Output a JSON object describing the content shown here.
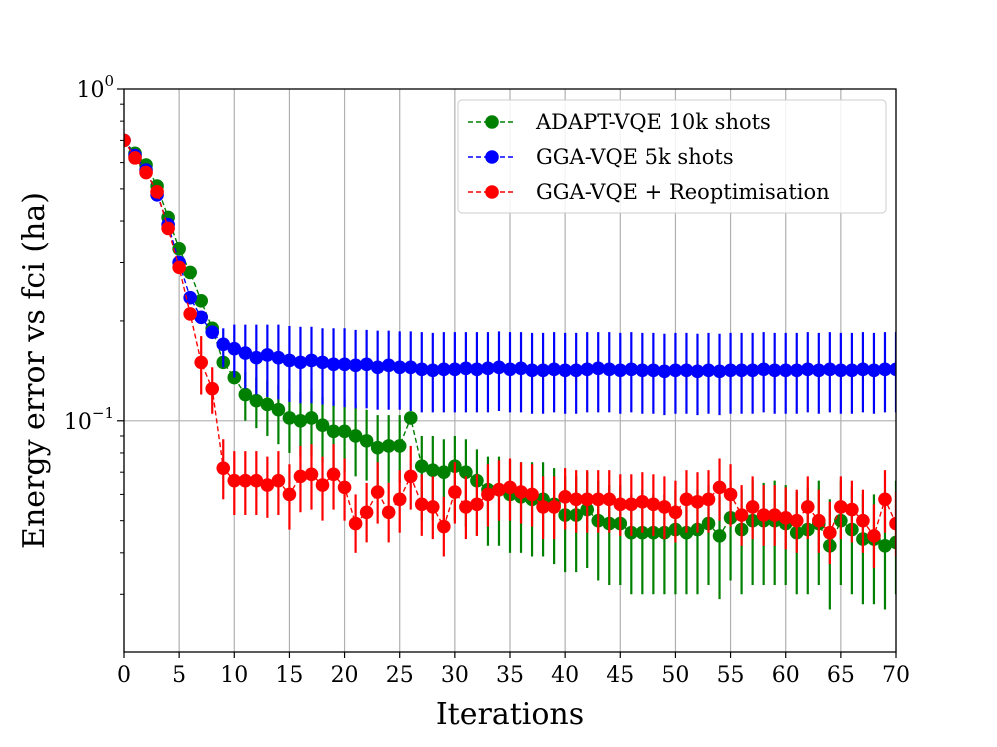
{
  "chart_data": {
    "type": "line",
    "xlabel": "Iterations",
    "ylabel": "Energy error vs fci (ha)",
    "xlim": [
      0,
      70
    ],
    "ylim": [
      0.02,
      1.0
    ],
    "yscale": "log",
    "grid": "vertical only (plus y=10^-1)",
    "legend_position": "upper right",
    "x_ticks": [
      0,
      5,
      10,
      15,
      20,
      25,
      30,
      35,
      40,
      45,
      50,
      55,
      60,
      65,
      70
    ],
    "y_ticks": [
      {
        "value": 1.0,
        "base": "10",
        "exp": "0"
      },
      {
        "value": 0.1,
        "base": "10",
        "exp": "−1"
      }
    ],
    "series": [
      {
        "name": "ADAPT-VQE 10k shots",
        "color": "#008000",
        "x": [
          0,
          1,
          2,
          3,
          4,
          5,
          6,
          7,
          8,
          9,
          10,
          11,
          12,
          13,
          14,
          15,
          16,
          17,
          18,
          19,
          20,
          21,
          22,
          23,
          24,
          25,
          26,
          27,
          28,
          29,
          30,
          31,
          32,
          33,
          34,
          35,
          36,
          37,
          38,
          39,
          40,
          41,
          42,
          43,
          44,
          45,
          46,
          47,
          48,
          49,
          50,
          51,
          52,
          53,
          54,
          55,
          56,
          57,
          58,
          59,
          60,
          61,
          62,
          63,
          64,
          65,
          66,
          67,
          68,
          69,
          70
        ],
        "y": [
          0.7,
          0.64,
          0.59,
          0.51,
          0.41,
          0.33,
          0.28,
          0.23,
          0.19,
          0.15,
          0.135,
          0.12,
          0.115,
          0.112,
          0.108,
          0.102,
          0.1,
          0.102,
          0.097,
          0.093,
          0.093,
          0.09,
          0.087,
          0.083,
          0.084,
          0.084,
          0.102,
          0.073,
          0.071,
          0.07,
          0.073,
          0.07,
          0.066,
          0.062,
          0.062,
          0.06,
          0.059,
          0.058,
          0.058,
          0.056,
          0.052,
          0.052,
          0.054,
          0.05,
          0.049,
          0.049,
          0.046,
          0.046,
          0.046,
          0.046,
          0.047,
          0.046,
          0.047,
          0.049,
          0.045,
          0.051,
          0.047,
          0.05,
          0.05,
          0.05,
          0.049,
          0.046,
          0.047,
          0.049,
          0.042,
          0.05,
          0.047,
          0.044,
          0.044,
          0.042,
          0.043
        ],
        "err_low": [
          0.7,
          0.64,
          0.59,
          0.51,
          0.41,
          0.33,
          0.28,
          0.23,
          0.19,
          0.15,
          0.135,
          0.1,
          0.095,
          0.09,
          0.085,
          0.08,
          0.078,
          0.078,
          0.075,
          0.072,
          0.07,
          0.068,
          0.066,
          0.064,
          0.065,
          0.065,
          0.102,
          0.05,
          0.05,
          0.048,
          0.05,
          0.048,
          0.045,
          0.042,
          0.042,
          0.04,
          0.04,
          0.039,
          0.039,
          0.037,
          0.035,
          0.035,
          0.036,
          0.033,
          0.032,
          0.032,
          0.03,
          0.03,
          0.03,
          0.03,
          0.03,
          0.03,
          0.03,
          0.032,
          0.029,
          0.033,
          0.03,
          0.032,
          0.032,
          0.032,
          0.032,
          0.03,
          0.03,
          0.032,
          0.027,
          0.032,
          0.03,
          0.028,
          0.028,
          0.027,
          0.03
        ],
        "err_high": [
          0.7,
          0.64,
          0.59,
          0.51,
          0.41,
          0.33,
          0.28,
          0.23,
          0.19,
          0.15,
          0.135,
          0.14,
          0.135,
          0.132,
          0.128,
          0.124,
          0.122,
          0.124,
          0.118,
          0.115,
          0.116,
          0.112,
          0.108,
          0.104,
          0.104,
          0.104,
          0.102,
          0.09,
          0.09,
          0.088,
          0.09,
          0.088,
          0.082,
          0.078,
          0.078,
          0.076,
          0.075,
          0.075,
          0.075,
          0.072,
          0.068,
          0.068,
          0.07,
          0.066,
          0.064,
          0.064,
          0.06,
          0.062,
          0.06,
          0.06,
          0.062,
          0.06,
          0.062,
          0.064,
          0.059,
          0.066,
          0.062,
          0.066,
          0.065,
          0.066,
          0.064,
          0.061,
          0.063,
          0.066,
          0.058,
          0.066,
          0.063,
          0.06,
          0.06,
          0.058,
          0.066
        ]
      },
      {
        "name": "GGA-VQE 5k shots",
        "color": "#0000ff",
        "x": [
          0,
          1,
          2,
          3,
          4,
          5,
          6,
          7,
          8,
          9,
          10,
          11,
          12,
          13,
          14,
          15,
          16,
          17,
          18,
          19,
          20,
          21,
          22,
          23,
          24,
          25,
          26,
          27,
          28,
          29,
          30,
          31,
          32,
          33,
          34,
          35,
          36,
          37,
          38,
          39,
          40,
          41,
          42,
          43,
          44,
          45,
          46,
          47,
          48,
          49,
          50,
          51,
          52,
          53,
          54,
          55,
          56,
          57,
          58,
          59,
          60,
          61,
          62,
          63,
          64,
          65,
          66,
          67,
          68,
          69,
          70
        ],
        "y": [
          0.7,
          0.63,
          0.57,
          0.48,
          0.39,
          0.3,
          0.235,
          0.205,
          0.185,
          0.17,
          0.165,
          0.16,
          0.155,
          0.158,
          0.155,
          0.152,
          0.15,
          0.152,
          0.15,
          0.148,
          0.148,
          0.147,
          0.148,
          0.145,
          0.147,
          0.145,
          0.145,
          0.143,
          0.142,
          0.143,
          0.143,
          0.144,
          0.143,
          0.144,
          0.145,
          0.143,
          0.144,
          0.142,
          0.142,
          0.143,
          0.142,
          0.142,
          0.143,
          0.144,
          0.143,
          0.142,
          0.143,
          0.142,
          0.142,
          0.141,
          0.142,
          0.142,
          0.141,
          0.142,
          0.141,
          0.142,
          0.142,
          0.142,
          0.143,
          0.142,
          0.142,
          0.142,
          0.143,
          0.142,
          0.143,
          0.142,
          0.142,
          0.143,
          0.142,
          0.143,
          0.143
        ],
        "err_low": [
          0.7,
          0.63,
          0.57,
          0.48,
          0.39,
          0.3,
          0.235,
          0.205,
          0.185,
          0.145,
          0.135,
          0.125,
          0.12,
          0.118,
          0.116,
          0.114,
          0.113,
          0.113,
          0.112,
          0.111,
          0.11,
          0.109,
          0.109,
          0.108,
          0.108,
          0.108,
          0.107,
          0.106,
          0.106,
          0.106,
          0.106,
          0.106,
          0.106,
          0.106,
          0.107,
          0.106,
          0.106,
          0.105,
          0.105,
          0.106,
          0.105,
          0.105,
          0.106,
          0.106,
          0.106,
          0.105,
          0.106,
          0.105,
          0.105,
          0.104,
          0.105,
          0.105,
          0.104,
          0.105,
          0.104,
          0.105,
          0.105,
          0.105,
          0.106,
          0.105,
          0.105,
          0.105,
          0.106,
          0.105,
          0.106,
          0.105,
          0.105,
          0.106,
          0.105,
          0.106,
          0.106
        ],
        "err_high": [
          0.7,
          0.63,
          0.57,
          0.48,
          0.39,
          0.3,
          0.235,
          0.205,
          0.185,
          0.19,
          0.195,
          0.195,
          0.195,
          0.195,
          0.195,
          0.193,
          0.192,
          0.192,
          0.19,
          0.19,
          0.19,
          0.188,
          0.188,
          0.187,
          0.187,
          0.186,
          0.186,
          0.185,
          0.184,
          0.185,
          0.185,
          0.185,
          0.185,
          0.185,
          0.186,
          0.185,
          0.185,
          0.184,
          0.184,
          0.185,
          0.184,
          0.184,
          0.185,
          0.185,
          0.185,
          0.184,
          0.185,
          0.184,
          0.184,
          0.183,
          0.184,
          0.184,
          0.183,
          0.184,
          0.183,
          0.184,
          0.184,
          0.184,
          0.185,
          0.184,
          0.184,
          0.184,
          0.185,
          0.184,
          0.185,
          0.184,
          0.184,
          0.185,
          0.184,
          0.185,
          0.185
        ]
      },
      {
        "name": "GGA-VQE + Reoptimisation",
        "color": "#ff0000",
        "x": [
          0,
          1,
          2,
          3,
          4,
          5,
          6,
          7,
          8,
          9,
          10,
          11,
          12,
          13,
          14,
          15,
          16,
          17,
          18,
          19,
          20,
          21,
          22,
          23,
          24,
          25,
          26,
          27,
          28,
          29,
          30,
          31,
          32,
          33,
          34,
          35,
          36,
          37,
          38,
          39,
          40,
          41,
          42,
          43,
          44,
          45,
          46,
          47,
          48,
          49,
          50,
          51,
          52,
          53,
          54,
          55,
          56,
          57,
          58,
          59,
          60,
          61,
          62,
          63,
          64,
          65,
          66,
          67,
          68,
          69,
          70
        ],
        "y": [
          0.7,
          0.62,
          0.56,
          0.49,
          0.38,
          0.29,
          0.21,
          0.15,
          0.125,
          0.072,
          0.066,
          0.066,
          0.066,
          0.064,
          0.066,
          0.06,
          0.068,
          0.069,
          0.064,
          0.069,
          0.063,
          0.049,
          0.053,
          0.061,
          0.053,
          0.058,
          0.068,
          0.056,
          0.055,
          0.048,
          0.061,
          0.055,
          0.056,
          0.06,
          0.062,
          0.063,
          0.061,
          0.06,
          0.055,
          0.055,
          0.059,
          0.058,
          0.058,
          0.058,
          0.058,
          0.056,
          0.056,
          0.057,
          0.056,
          0.055,
          0.053,
          0.058,
          0.057,
          0.058,
          0.063,
          0.06,
          0.052,
          0.055,
          0.052,
          0.052,
          0.051,
          0.05,
          0.055,
          0.05,
          0.046,
          0.055,
          0.054,
          0.05,
          0.045,
          0.058,
          0.049
        ],
        "err_low": [
          0.7,
          0.62,
          0.56,
          0.49,
          0.38,
          0.29,
          0.21,
          0.12,
          0.105,
          0.058,
          0.052,
          0.052,
          0.052,
          0.051,
          0.052,
          0.047,
          0.053,
          0.054,
          0.05,
          0.054,
          0.05,
          0.04,
          0.043,
          0.049,
          0.043,
          0.046,
          0.054,
          0.045,
          0.044,
          0.039,
          0.049,
          0.044,
          0.045,
          0.048,
          0.05,
          0.05,
          0.049,
          0.048,
          0.044,
          0.044,
          0.047,
          0.046,
          0.046,
          0.046,
          0.046,
          0.045,
          0.045,
          0.046,
          0.045,
          0.044,
          0.043,
          0.046,
          0.046,
          0.046,
          0.05,
          0.048,
          0.042,
          0.044,
          0.042,
          0.042,
          0.041,
          0.04,
          0.044,
          0.04,
          0.037,
          0.044,
          0.043,
          0.04,
          0.036,
          0.046,
          0.039
        ],
        "err_high": [
          0.7,
          0.62,
          0.56,
          0.49,
          0.38,
          0.29,
          0.21,
          0.18,
          0.145,
          0.088,
          0.081,
          0.081,
          0.081,
          0.078,
          0.081,
          0.074,
          0.084,
          0.085,
          0.078,
          0.085,
          0.077,
          0.06,
          0.065,
          0.075,
          0.065,
          0.071,
          0.084,
          0.069,
          0.068,
          0.059,
          0.075,
          0.068,
          0.069,
          0.074,
          0.076,
          0.077,
          0.075,
          0.074,
          0.068,
          0.068,
          0.072,
          0.071,
          0.071,
          0.071,
          0.071,
          0.069,
          0.069,
          0.07,
          0.069,
          0.068,
          0.066,
          0.071,
          0.07,
          0.071,
          0.077,
          0.074,
          0.064,
          0.068,
          0.064,
          0.064,
          0.063,
          0.062,
          0.068,
          0.062,
          0.057,
          0.068,
          0.066,
          0.062,
          0.056,
          0.071,
          0.061
        ]
      }
    ]
  }
}
